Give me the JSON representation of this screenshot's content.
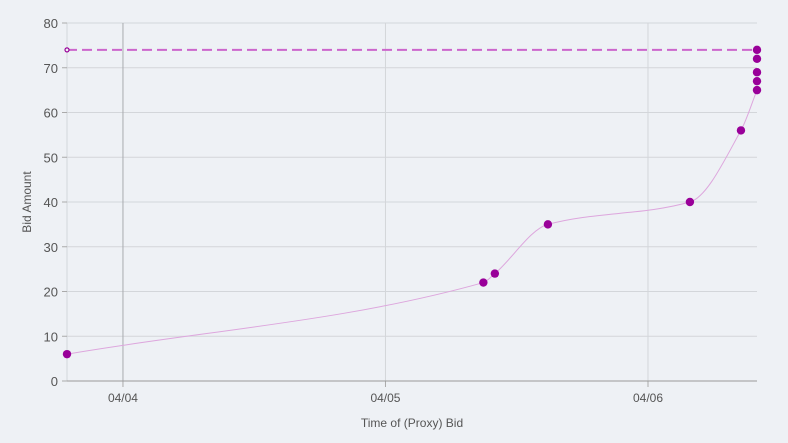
{
  "chart_data": {
    "type": "line",
    "title": "",
    "xlabel": "Time of (Proxy) Bid",
    "ylabel": "Bid Amount",
    "ylim": [
      0,
      80
    ],
    "yticks": [
      0,
      10,
      20,
      30,
      40,
      50,
      60,
      70,
      80
    ],
    "xlim": [
      "2000-04-03T18:53",
      "2000-04-06T09:58"
    ],
    "xticks": [
      {
        "t": "2000-04-04T00:00",
        "label": "04/04"
      },
      {
        "t": "2000-04-05T00:00",
        "label": "04/05"
      },
      {
        "t": "2000-04-06T00:00",
        "label": "04/06"
      }
    ],
    "grid": true,
    "series": [
      {
        "color": "#990099",
        "line_color": "#dda6dd",
        "smooth": true,
        "points": [
          {
            "t": "2000-04-03T18:53",
            "y": 6
          },
          {
            "t": "2000-04-05T08:57",
            "y": 22
          },
          {
            "t": "2000-04-05T10:00",
            "y": 24
          },
          {
            "t": "2000-04-05T14:51",
            "y": 35
          },
          {
            "t": "2000-04-06T03:50",
            "y": 40
          },
          {
            "t": "2000-04-06T08:30",
            "y": 56
          },
          {
            "t": "2000-04-06T09:58",
            "y": 65
          },
          {
            "t": "2000-04-06T09:58",
            "y": 67
          },
          {
            "t": "2000-04-06T09:58",
            "y": 69
          },
          {
            "t": "2000-04-06T09:58",
            "y": 72
          },
          {
            "t": "2000-04-06T09:58",
            "y": 74
          }
        ]
      }
    ],
    "reference_line": {
      "y": 74,
      "style": "dashed",
      "color": "#cc66cc"
    }
  }
}
